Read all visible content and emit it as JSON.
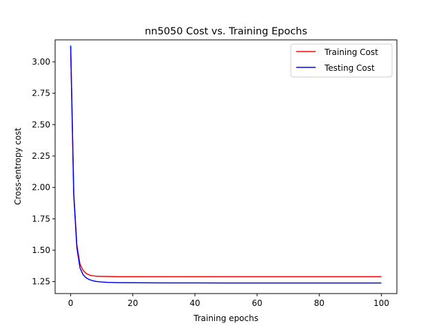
{
  "chart_data": {
    "type": "line",
    "title": "nn5050 Cost vs. Training Epochs",
    "xlabel": "Training epochs",
    "ylabel": "Cross-entropy cost",
    "xlim": [
      -5,
      105
    ],
    "ylim": [
      1.155,
      3.175
    ],
    "xticks": [
      0,
      20,
      40,
      60,
      80,
      100
    ],
    "xtick_labels": [
      "0",
      "20",
      "40",
      "60",
      "80",
      "100"
    ],
    "yticks": [
      1.25,
      1.5,
      1.75,
      2.0,
      2.25,
      2.5,
      2.75,
      3.0
    ],
    "ytick_labels": [
      "1.25",
      "1.50",
      "1.75",
      "2.00",
      "2.25",
      "2.50",
      "2.75",
      "3.00"
    ],
    "grid": false,
    "legend_position": "top-right",
    "series": [
      {
        "name": "Training Cost",
        "color": "#ff0000",
        "x": [
          0,
          1,
          2,
          3,
          4,
          5,
          6,
          7,
          8,
          10,
          12,
          15,
          20,
          30,
          40,
          50,
          60,
          70,
          80,
          90,
          100
        ],
        "y": [
          3.12,
          1.95,
          1.54,
          1.39,
          1.34,
          1.315,
          1.303,
          1.297,
          1.294,
          1.292,
          1.291,
          1.29,
          1.29,
          1.29,
          1.29,
          1.29,
          1.29,
          1.29,
          1.29,
          1.29,
          1.29
        ]
      },
      {
        "name": "Testing Cost",
        "color": "#0000ff",
        "x": [
          0,
          1,
          2,
          3,
          4,
          5,
          6,
          7,
          8,
          10,
          12,
          15,
          20,
          30,
          40,
          50,
          60,
          70,
          80,
          90,
          100
        ],
        "y": [
          3.13,
          1.94,
          1.52,
          1.36,
          1.305,
          1.28,
          1.266,
          1.258,
          1.252,
          1.247,
          1.244,
          1.242,
          1.241,
          1.24,
          1.24,
          1.239,
          1.239,
          1.239,
          1.239,
          1.239,
          1.239
        ]
      }
    ]
  }
}
